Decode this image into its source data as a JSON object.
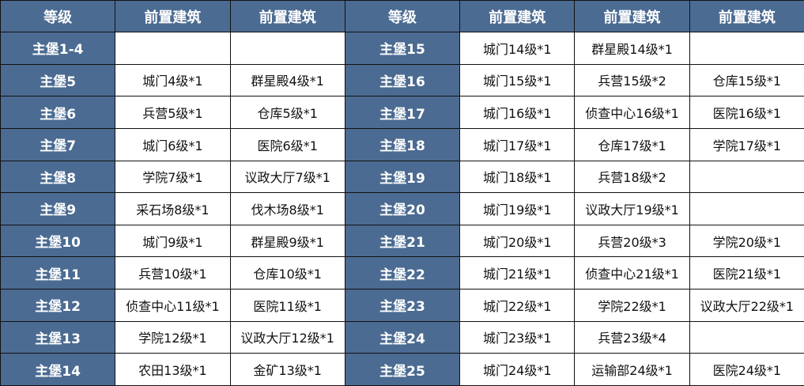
{
  "header_color": "#4b6b92",
  "headers": [
    "等级",
    "前置建筑",
    "前置建筑",
    "等级",
    "前置建筑",
    "前置建筑",
    "前置建筑"
  ],
  "rows": [
    [
      "主堡1-4",
      "",
      "",
      "主堡15",
      "城门14级*1",
      "群星殿14级*1",
      ""
    ],
    [
      "主堡5",
      "城门4级*1",
      "群星殿4级*1",
      "主堡16",
      "城门15级*1",
      "兵营15级*2",
      "仓库15级*1"
    ],
    [
      "主堡6",
      "兵营5级*1",
      "仓库5级*1",
      "主堡17",
      "城门16级*1",
      "侦查中心16级*1",
      "医院16级*1"
    ],
    [
      "主堡7",
      "城门6级*1",
      "医院6级*1",
      "主堡18",
      "城门17级*1",
      "仓库17级*1",
      "学院17级*1"
    ],
    [
      "主堡8",
      "学院7级*1",
      "议政大厅7级*1",
      "主堡19",
      "城门18级*1",
      "兵营18级*2",
      ""
    ],
    [
      "主堡9",
      "采石场8级*1",
      "伐木场8级*1",
      "主堡20",
      "城门19级*1",
      "议政大厅19级*1",
      ""
    ],
    [
      "主堡10",
      "城门9级*1",
      "群星殿9级*1",
      "主堡21",
      "城门20级*1",
      "兵营20级*3",
      "学院20级*1"
    ],
    [
      "主堡11",
      "兵营10级*1",
      "仓库10级*1",
      "主堡22",
      "城门21级*1",
      "侦查中心21级*1",
      "医院21级*1"
    ],
    [
      "主堡12",
      "侦查中心11级*1",
      "医院11级*1",
      "主堡23",
      "城门22级*1",
      "学院22级*1",
      "议政大厅22级*1"
    ],
    [
      "主堡13",
      "学院12级*1",
      "议政大厅12级*1",
      "主堡24",
      "城门23级*1",
      "兵营23级*4",
      ""
    ],
    [
      "主堡14",
      "农田13级*1",
      "金矿13级*1",
      "主堡25",
      "城门24级*1",
      "运输部24级*1",
      "医院24级*1"
    ]
  ]
}
